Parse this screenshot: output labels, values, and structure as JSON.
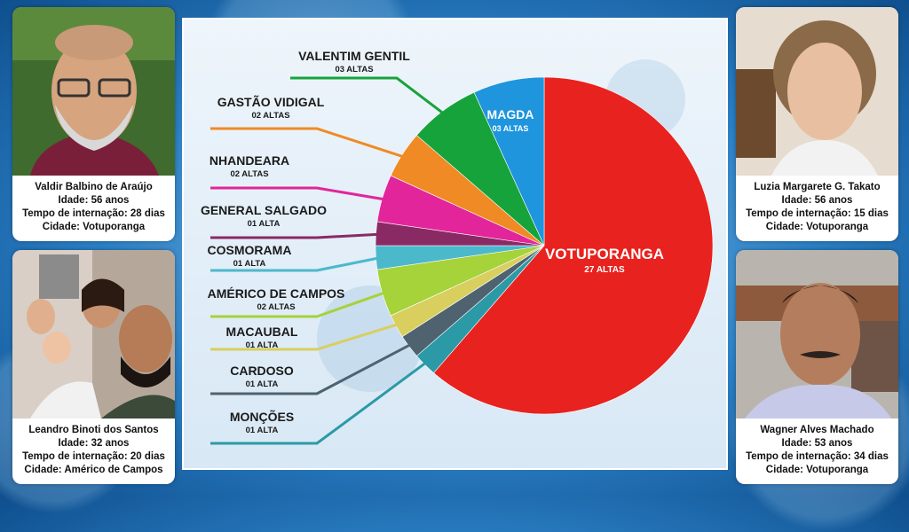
{
  "cards": [
    {
      "name": "Valdir Balbino de Araújo",
      "age": "Idade: 56 anos",
      "stay": "Tempo de internação: 28 dias",
      "city": "Cidade: Votuporanga"
    },
    {
      "name": "Leandro Binoti dos Santos",
      "age": "Idade: 32 anos",
      "stay": "Tempo de internação: 20 dias",
      "city": "Cidade: Américo de Campos"
    },
    {
      "name": "Luzia Margarete G. Takato",
      "age": "Idade: 56 anos",
      "stay": "Tempo de internação: 15 dias",
      "city": "Cidade: Votuporanga"
    },
    {
      "name": "Wagner Alves Machado",
      "age": "Idade: 53 anos",
      "stay": "Tempo de internação: 34 dias",
      "city": "Cidade: Votuporanga"
    }
  ],
  "chart_data": {
    "type": "pie",
    "slices": [
      {
        "label": "VOTUPORANGA",
        "sub": "27 ALTAS",
        "value": 27,
        "color": "#e8221f"
      },
      {
        "label": "MONÇÕES",
        "sub": "01 ALTA",
        "value": 1,
        "color": "#2b9aa6"
      },
      {
        "label": "CARDOSO",
        "sub": "01 ALTA",
        "value": 1,
        "color": "#4e6270"
      },
      {
        "label": "MACAUBAL",
        "sub": "01 ALTA",
        "value": 1,
        "color": "#d8cf5e"
      },
      {
        "label": "AMÉRICO DE CAMPOS",
        "sub": "02 ALTAS",
        "value": 2,
        "color": "#a6d23a"
      },
      {
        "label": "COSMORAMA",
        "sub": "01 ALTA",
        "value": 1,
        "color": "#4cb8cc"
      },
      {
        "label": "GENERAL SALGADO",
        "sub": "01 ALTA",
        "value": 1,
        "color": "#8a2a64"
      },
      {
        "label": "NHANDEARA",
        "sub": "02 ALTAS",
        "value": 2,
        "color": "#e2259a"
      },
      {
        "label": "GASTÃO VIDIGAL",
        "sub": "02 ALTAS",
        "value": 2,
        "color": "#f08a24"
      },
      {
        "label": "VALENTIM GENTIL",
        "sub": "03 ALTAS",
        "value": 3,
        "color": "#17a33b"
      },
      {
        "label": "MAGDA",
        "sub": "03 ALTAS",
        "value": 3,
        "color": "#1e95dc"
      }
    ]
  }
}
